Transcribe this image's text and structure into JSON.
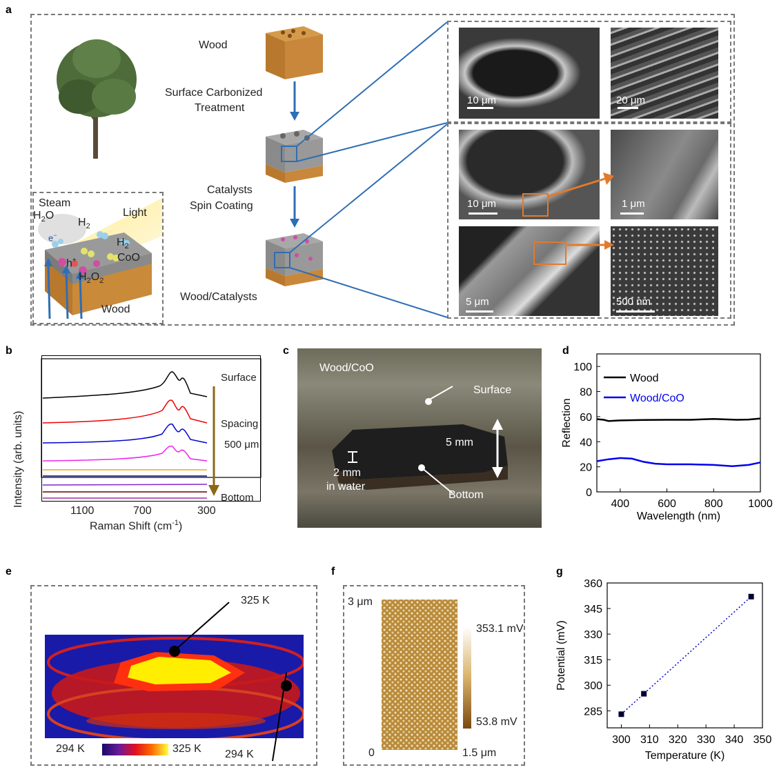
{
  "panel_labels": {
    "a": "a",
    "b": "b",
    "c": "c",
    "d": "d",
    "e": "e",
    "f": "f",
    "g": "g"
  },
  "panel_a": {
    "wood": "Wood",
    "step1_line1": "Surface Carbonized",
    "step1_line2": "Treatment",
    "step2_line1": "Catalysts",
    "step2_line2": "Spin Coating",
    "product": "Wood/Catalysts",
    "inset": {
      "steam": "Steam",
      "h2o": "H",
      "h2o_sub": "2",
      "h2o_tail": "O",
      "light": "Light",
      "h2_1": "H",
      "h2_1_sub": "2",
      "h2_2": "H",
      "h2_2_sub": "2",
      "coo": "CoO",
      "hplus": "h",
      "hplus_sup": "+",
      "eminus": "e",
      "eminus_sup": "−",
      "h2o2": "H",
      "h2o2_sub1": "2",
      "h2o2_mid": "O",
      "h2o2_sub2": "2",
      "wood": "Wood"
    },
    "sem_scales": [
      "10 μm",
      "20 μm",
      "10 μm",
      "1 μm",
      "5 μm",
      "500 nm"
    ]
  },
  "panel_b": {
    "ylabel": "Intensity (arb. units)",
    "xlabel": "Raman Shift  (cm",
    "xlabel_sup": "-1",
    "xlabel_end": ")",
    "ticks": [
      "1100",
      "700",
      "300"
    ],
    "surface": "Surface",
    "spacing": "Spacing",
    "spacing_val": "500 μm",
    "bottom": "Bottom"
  },
  "panel_c": {
    "title": "Wood/CoO",
    "surface": "Surface",
    "bottom": "Bottom",
    "thickness": "5 mm",
    "water_line1": "2 mm",
    "water_line2": "in water"
  },
  "panel_e": {
    "hot": "325 K",
    "cold": "294 K",
    "cbar_min": "294 K",
    "cbar_max": "325 K"
  },
  "panel_f": {
    "y_top": "3 μm",
    "origin": "0",
    "x_right": "1.5 μm",
    "cbar_max": "353.1 mV",
    "cbar_min": "53.8 mV"
  },
  "chart_data": [
    {
      "panel": "d",
      "type": "line",
      "xlabel": "Wavelength (nm)",
      "ylabel": "Reflection",
      "xlim": [
        300,
        1000
      ],
      "ylim": [
        0,
        110
      ],
      "xticks": [
        400,
        600,
        800,
        1000
      ],
      "yticks": [
        0,
        20,
        40,
        60,
        80,
        100
      ],
      "legend": "top-left",
      "series": [
        {
          "name": "Wood",
          "color": "#000000",
          "x": [
            300,
            330,
            350,
            400,
            500,
            600,
            700,
            800,
            850,
            900,
            950,
            1000
          ],
          "y": [
            58,
            57.5,
            56.5,
            57,
            57.3,
            57.5,
            57.5,
            58.2,
            57.8,
            57.5,
            57.7,
            58.5
          ]
        },
        {
          "name": "Wood/CoO",
          "color": "#0000ee",
          "x": [
            300,
            350,
            400,
            450,
            500,
            550,
            600,
            700,
            800,
            880,
            950,
            1000
          ],
          "y": [
            24.5,
            26,
            27,
            26.5,
            24,
            22.5,
            22,
            22,
            21.5,
            20.5,
            21.5,
            23.5
          ]
        }
      ]
    },
    {
      "panel": "g",
      "type": "scatter",
      "xlabel": "Temperature (K)",
      "ylabel": "Potential (mV)",
      "xlim": [
        295,
        350
      ],
      "ylim": [
        275,
        360
      ],
      "xticks": [
        300,
        310,
        320,
        330,
        340,
        350
      ],
      "yticks": [
        285,
        300,
        315,
        330,
        345,
        360
      ],
      "points": {
        "x": [
          300,
          308,
          346
        ],
        "y": [
          283,
          295,
          352
        ]
      },
      "fit": {
        "x": [
          300,
          346
        ],
        "y": [
          283,
          352
        ]
      }
    }
  ],
  "colors": {
    "blue_arrow": "#2f6db4",
    "orange_box": "#e27a2c",
    "wood": "#b8792e",
    "carbon": "#7d7d7d"
  }
}
